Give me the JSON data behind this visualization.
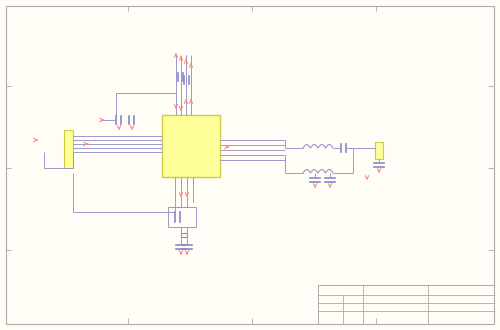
{
  "bg_color": "#FFFDF5",
  "border_color": "#AAAAAA",
  "line_color": "#9999CC",
  "component_color": "#FFFF99",
  "arrow_color": "#FF8888",
  "cap_color": "#8888CC",
  "fig_width": 5.0,
  "fig_height": 3.3,
  "dpi": 100
}
